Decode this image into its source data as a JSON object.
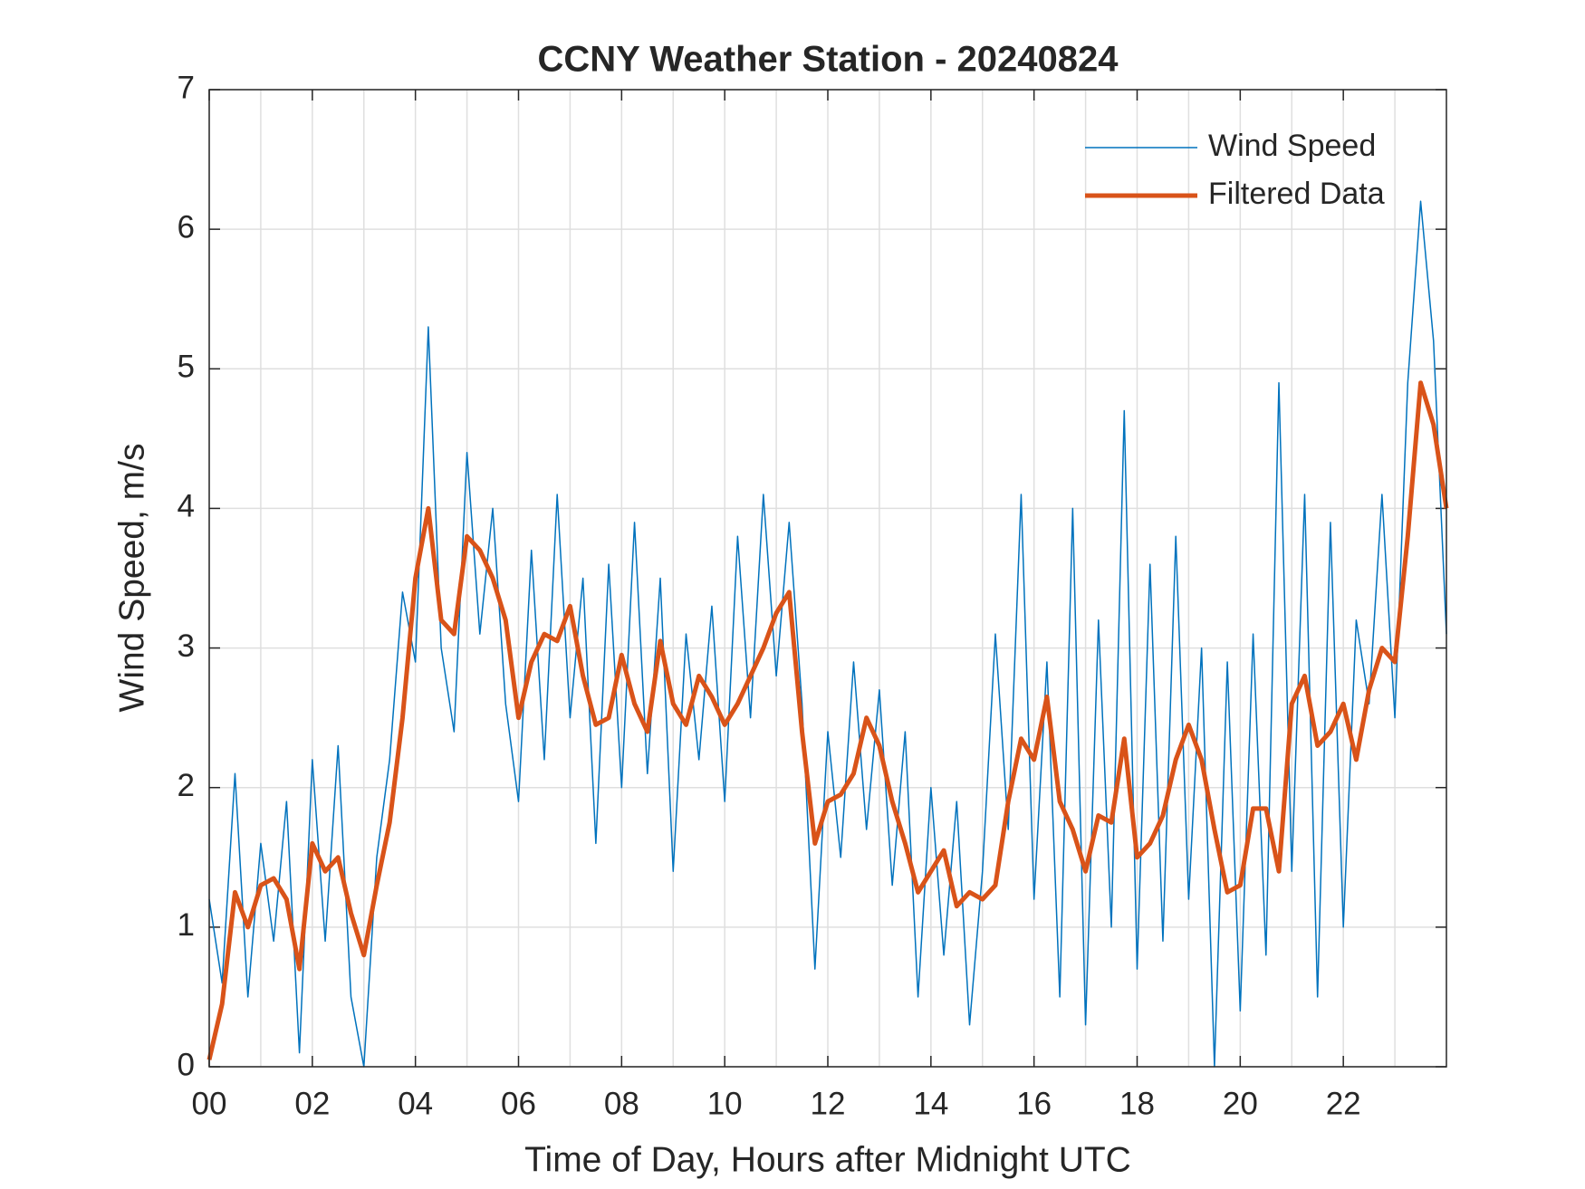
{
  "chart_data": {
    "type": "line",
    "title": "CCNY Weather Station - 20240824",
    "x_label": "Time of Day, Hours after Midnight UTC",
    "y_label": "Wind Speed, m/s",
    "x": [
      0,
      0.25,
      0.5,
      0.75,
      1,
      1.25,
      1.5,
      1.75,
      2,
      2.25,
      2.5,
      2.75,
      3,
      3.25,
      3.5,
      3.75,
      4,
      4.25,
      4.5,
      4.75,
      5,
      5.25,
      5.5,
      5.75,
      6,
      6.25,
      6.5,
      6.75,
      7,
      7.25,
      7.5,
      7.75,
      8,
      8.25,
      8.5,
      8.75,
      9,
      9.25,
      9.5,
      9.75,
      10,
      10.25,
      10.5,
      10.75,
      11,
      11.25,
      11.5,
      11.75,
      12,
      12.25,
      12.5,
      12.75,
      13,
      13.25,
      13.5,
      13.75,
      14,
      14.25,
      14.5,
      14.75,
      15,
      15.25,
      15.5,
      15.75,
      16,
      16.25,
      16.5,
      16.75,
      17,
      17.25,
      17.5,
      17.75,
      18,
      18.25,
      18.5,
      18.75,
      19,
      19.25,
      19.5,
      19.75,
      20,
      20.25,
      20.5,
      20.75,
      21,
      21.25,
      21.5,
      21.75,
      22,
      22.25,
      22.5,
      22.75,
      23,
      23.25,
      23.5,
      23.75,
      24
    ],
    "series": [
      {
        "name": "Wind Speed",
        "color": "#0072bd",
        "width": 1.5,
        "values": [
          1.2,
          0.6,
          2.1,
          0.5,
          1.6,
          0.9,
          1.9,
          0.1,
          2.2,
          0.9,
          2.3,
          0.5,
          0.0,
          1.5,
          2.2,
          3.4,
          2.9,
          5.3,
          3.0,
          2.4,
          4.4,
          3.1,
          4.0,
          2.6,
          1.9,
          3.7,
          2.2,
          4.1,
          2.5,
          3.5,
          1.6,
          3.6,
          2.0,
          3.9,
          2.1,
          3.5,
          1.4,
          3.1,
          2.2,
          3.3,
          1.9,
          3.8,
          2.5,
          4.1,
          2.8,
          3.9,
          2.6,
          0.7,
          2.4,
          1.5,
          2.9,
          1.7,
          2.7,
          1.3,
          2.4,
          0.5,
          2.0,
          0.8,
          1.9,
          0.3,
          1.4,
          3.1,
          1.7,
          4.1,
          1.2,
          2.9,
          0.5,
          4.0,
          0.3,
          3.2,
          1.0,
          4.7,
          0.7,
          3.6,
          0.9,
          3.8,
          1.2,
          3.0,
          0.0,
          2.9,
          0.4,
          3.1,
          0.8,
          4.9,
          1.4,
          4.1,
          0.5,
          3.9,
          1.0,
          3.2,
          2.6,
          4.1,
          2.5,
          4.9,
          6.2,
          5.2,
          3.1
        ]
      },
      {
        "name": "Filtered Data",
        "color": "#d95319",
        "width": 5,
        "values": [
          0.05,
          0.45,
          1.25,
          1.0,
          1.3,
          1.35,
          1.2,
          0.7,
          1.6,
          1.4,
          1.5,
          1.1,
          0.8,
          1.3,
          1.75,
          2.5,
          3.5,
          4.0,
          3.2,
          3.1,
          3.8,
          3.7,
          3.5,
          3.2,
          2.5,
          2.9,
          3.1,
          3.05,
          3.3,
          2.8,
          2.45,
          2.5,
          2.95,
          2.6,
          2.4,
          3.05,
          2.6,
          2.45,
          2.8,
          2.65,
          2.45,
          2.6,
          2.8,
          3.0,
          3.25,
          3.4,
          2.4,
          1.6,
          1.9,
          1.95,
          2.1,
          2.5,
          2.3,
          1.9,
          1.6,
          1.25,
          1.4,
          1.55,
          1.15,
          1.25,
          1.2,
          1.3,
          1.9,
          2.35,
          2.2,
          2.65,
          1.9,
          1.7,
          1.4,
          1.8,
          1.75,
          2.35,
          1.5,
          1.6,
          1.8,
          2.2,
          2.45,
          2.2,
          1.7,
          1.25,
          1.3,
          1.85,
          1.85,
          1.4,
          2.6,
          2.8,
          2.3,
          2.4,
          2.6,
          2.2,
          2.7,
          3.0,
          2.9,
          3.8,
          4.9,
          4.6,
          4.0
        ]
      }
    ],
    "xlim": [
      0,
      24
    ],
    "xticks": [
      {
        "value": 0,
        "label": "00"
      },
      {
        "value": 2,
        "label": "02"
      },
      {
        "value": 4,
        "label": "04"
      },
      {
        "value": 6,
        "label": "06"
      },
      {
        "value": 8,
        "label": "08"
      },
      {
        "value": 10,
        "label": "10"
      },
      {
        "value": 12,
        "label": "12"
      },
      {
        "value": 14,
        "label": "14"
      },
      {
        "value": 16,
        "label": "16"
      },
      {
        "value": 18,
        "label": "18"
      },
      {
        "value": 20,
        "label": "20"
      },
      {
        "value": 22,
        "label": "22"
      }
    ],
    "xminorticks": [
      1,
      3,
      5,
      7,
      9,
      11,
      13,
      15,
      17,
      19,
      21,
      23
    ],
    "ylim": [
      0,
      7
    ],
    "yticks": [
      0,
      1,
      2,
      3,
      4,
      5,
      6,
      7
    ],
    "grid": true,
    "legend": "northeast"
  }
}
